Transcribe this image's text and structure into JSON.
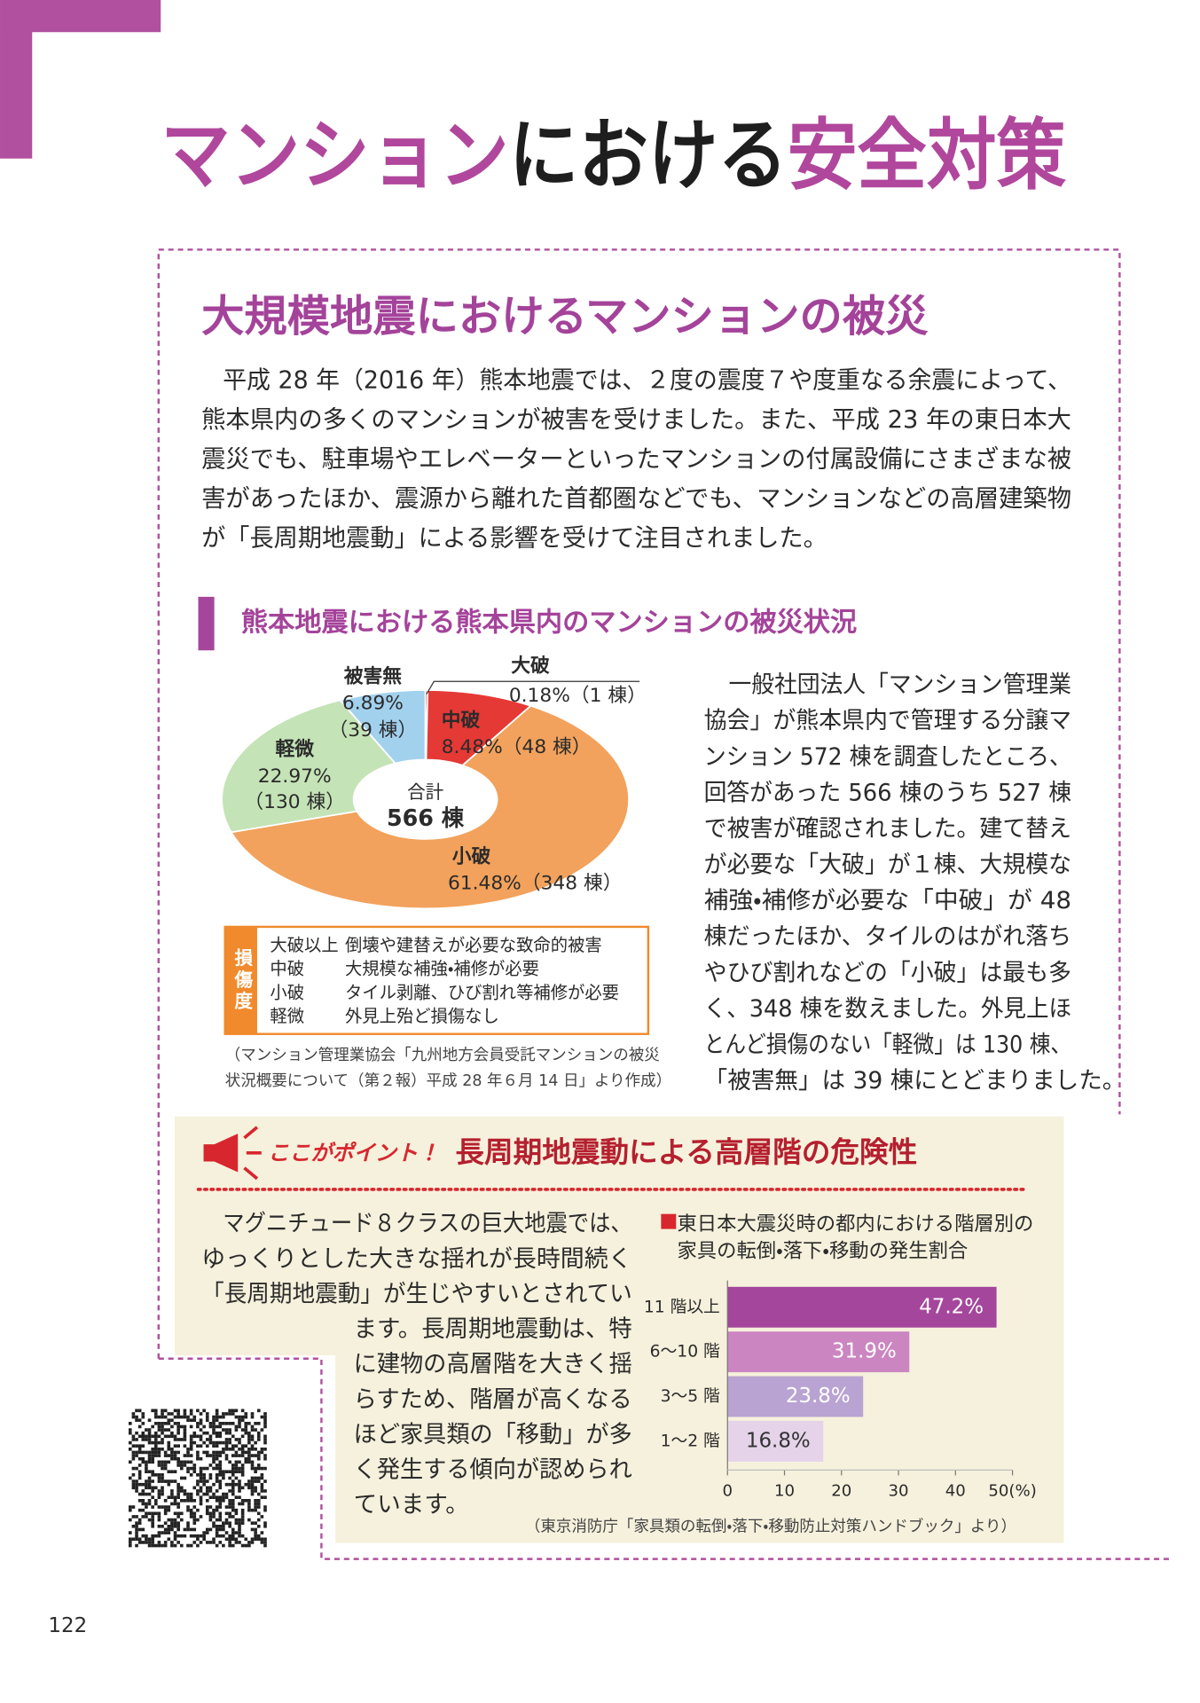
{
  "header": {
    "title": [
      "マンション",
      "における",
      "安全対策"
    ]
  },
  "section": {
    "heading": "大規模地震におけるマンションの被災",
    "paragraph": [
      "平成 28 年（2016 年）熊本地震では、２度の震度７や度重なる余震によって、",
      "熊本県内の多くのマンションが被害を受けました。また、平成 23 年の東日本大",
      "震災でも、駐車場やエレベーターといったマンションの付属設備にさまざまな被",
      "害があったほか、震源から離れた首都圏などでも、マンションなどの高層建築物",
      "が「長周期地震動」による影響を受けて注目されました。"
    ]
  },
  "survey": {
    "heading": "熊本地震における熊本県内のマンションの被災状況",
    "legend_title": "損傷度",
    "legend_rows": [
      [
        "大破以上",
        "倒壊や建替えが必要な致命的被害"
      ],
      [
        "中破",
        "大規模な補強・補修が必要"
      ],
      [
        "小破",
        "タイル剥離、ひび割れ等補修が必要"
      ],
      [
        "軽微",
        "外見上殆ど損傷なし"
      ]
    ],
    "source": [
      "（マンション管理業協会「九州地方会員受託マンションの被災",
      "状況概要について（第２報）平成 28 年６月 14 日」より作成）"
    ],
    "text": [
      "一般社団法人「マンション管理業",
      "協会」が熊本県内で管理する分譲マ",
      "ンション 572 棟を調査したところ、",
      "回答があった 566 棟のうち 527 棟",
      "で被害が確認されました。建て替え",
      "が必要な「大破」が１棟、大規模な",
      "補強・補修が必要な「中破」が 48",
      "棟だったほか、タイルのはがれ落ち",
      "やひび割れなどの「小破」は最も多",
      "く、348 棟を数えました。外見上ほ",
      "とんど損傷のない「軽微」は 130 棟、",
      "「被害無」は 39 棟にとどまりました。"
    ]
  },
  "point": {
    "tag": "ここがポイント！",
    "heading": "長周期地震動による高層階の危険性",
    "text": [
      "マグニチュード８クラスの巨大地震では、",
      "ゆっくりとした大きな揺れが長時間続く",
      "「長周期地震動」が生じやすいとされてい",
      "ます。長周期地震動は、特",
      "に建物の高層階を大きく揺",
      "らすため、階層が高くなる",
      "ほど家具類の「移動」が多",
      "く発生する傾向が認められ",
      "ています。"
    ]
  },
  "page_number": "122",
  "chart_data": [
    {
      "type": "pie",
      "categories": [
        "大破",
        "中破",
        "小破",
        "軽微",
        "被害無"
      ],
      "values": [
        0.18,
        8.48,
        61.48,
        22.97,
        6.89
      ],
      "value_labels": [
        "0.18%",
        "8.48%",
        "61.48%",
        "22.97%",
        "6.89%"
      ],
      "count_labels": [
        "（1 棟）",
        "（48 棟）",
        "（348 棟）",
        "（130 棟）",
        "（39 棟）"
      ],
      "colors": [
        "#e53935",
        "#e53935",
        "#f2a25c",
        "#c4e3b6",
        "#a2d1ee"
      ],
      "center_label": "合計",
      "total_label": "566 棟"
    },
    {
      "type": "bar",
      "orientation": "horizontal",
      "title": [
        "東日本大震災時の都内における階層別の",
        "家具の転倒・落下・移動の発生割合"
      ],
      "categories": [
        "11 階以上",
        "6～10 階",
        "3～5 階",
        "1～2 階"
      ],
      "values": [
        47.2,
        31.9,
        23.8,
        16.8
      ],
      "value_labels": [
        "47.2%",
        "31.9%",
        "23.8%",
        "16.8%"
      ],
      "colors": [
        "#a4479c",
        "#cb86c2",
        "#b9a3d2",
        "#e4d3e9"
      ],
      "xlim": [
        0,
        50
      ],
      "xticks": [
        0,
        10,
        20,
        30,
        40,
        {
          "value": 50,
          "label": "50(%)"
        }
      ],
      "source": "（東京消防庁「家具類の転倒・落下・移動防止対策ハンドブック」より）"
    }
  ]
}
